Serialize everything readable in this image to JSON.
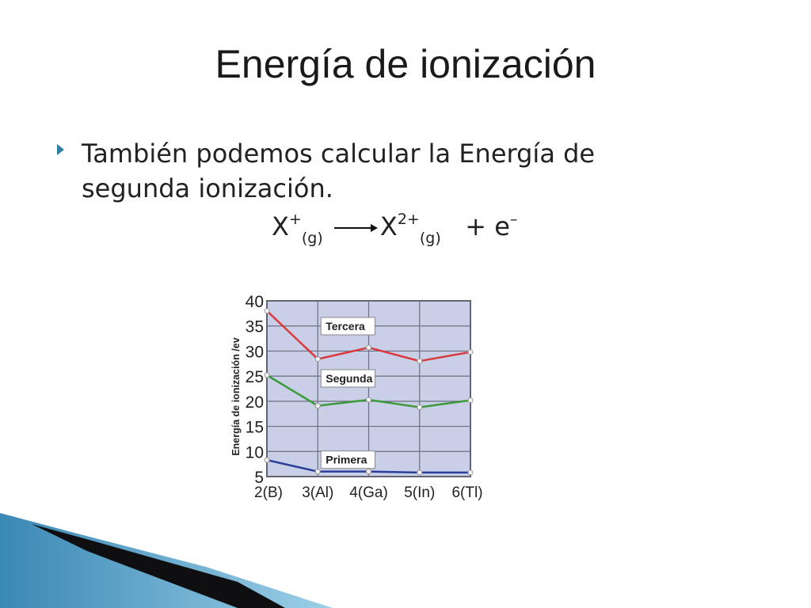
{
  "slide": {
    "title": "Energía de ionización",
    "bullet": "También podemos calcular la Energía de segunda ionización.",
    "equation": {
      "reactant": "X",
      "reactant_charge": "+",
      "reactant_state": "(g)",
      "product": "X",
      "product_charge": "2+",
      "product_state": "(g)",
      "plus": "+",
      "electron": "e",
      "electron_charge": "–"
    }
  },
  "colors": {
    "accent": "#2e7ea6",
    "plot_bg": "#c9cfe6",
    "tercera": "#d9393f",
    "segunda": "#3c9a3c",
    "primera": "#2b3f9a"
  },
  "chart_data": {
    "type": "line",
    "ylabel": "Energía de ionización /ev",
    "xlabel": "",
    "categories": [
      "2(B)",
      "3(Al)",
      "4(Ga)",
      "5(In)",
      "6(Tl)"
    ],
    "ylim": [
      5,
      40
    ],
    "yticks": [
      40,
      35,
      30,
      25,
      20,
      15,
      10,
      5
    ],
    "grid": true,
    "series": [
      {
        "name": "Tercera",
        "color": "#d9393f",
        "values": [
          38,
          28.4,
          30.7,
          28,
          29.8
        ]
      },
      {
        "name": "Segunda",
        "color": "#3c9a3c",
        "values": [
          25.2,
          19.1,
          20.3,
          18.8,
          20.2
        ]
      },
      {
        "name": "Primera",
        "color": "#2b3f9a",
        "values": [
          8.3,
          6,
          6,
          5.8,
          5.8
        ]
      }
    ]
  }
}
